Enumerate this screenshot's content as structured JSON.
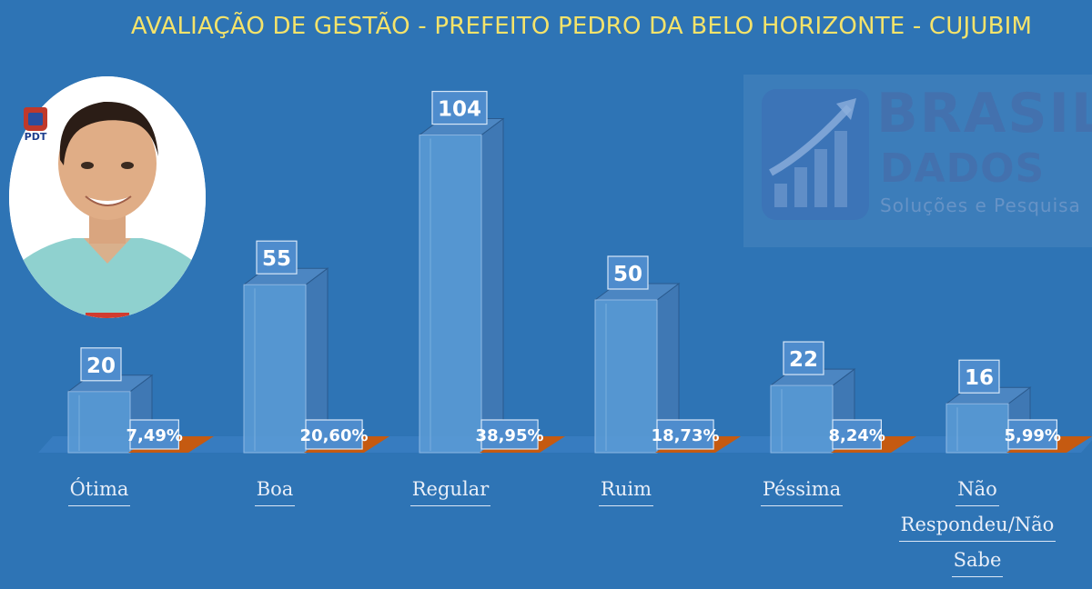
{
  "title": "AVALIAÇÃO DE GESTÃO - PREFEITO PEDRO DA BELO HORIZONTE - CUJUBIM",
  "party_logo_text": "PDT",
  "watermark": {
    "line1": "BRASIL",
    "line2": "DADOS",
    "line3": "Soluções e Pesquisa"
  },
  "colors": {
    "background": "#2e74b5",
    "bar": "#5b9bd5",
    "tray": "#c55a11",
    "title": "#f5e36a"
  },
  "chart_data": {
    "type": "bar",
    "categories": [
      "Ótima",
      "Boa",
      "Regular",
      "Ruim",
      "Péssima",
      "Não Respondeu/Não Sabe"
    ],
    "category_lines": [
      [
        "Ótima"
      ],
      [
        "Boa"
      ],
      [
        "Regular"
      ],
      [
        "Ruim"
      ],
      [
        "Péssima"
      ],
      [
        "Não",
        "Respondeu/Não",
        "Sabe"
      ]
    ],
    "values": [
      20,
      55,
      104,
      50,
      22,
      16
    ],
    "value_labels": [
      "20",
      "55",
      "104",
      "50",
      "22",
      "16"
    ],
    "percent_labels": [
      "7,49%",
      "20,60%",
      "38,95%",
      "18,73%",
      "8,24%",
      "5,99%"
    ],
    "percentages": [
      7.49,
      20.6,
      38.95,
      18.73,
      8.24,
      5.99
    ],
    "title": "AVALIAÇÃO DE GESTÃO - PREFEITO PEDRO DA BELO HORIZONTE - CUJUBIM",
    "style": "3d-bar",
    "grid": false
  }
}
